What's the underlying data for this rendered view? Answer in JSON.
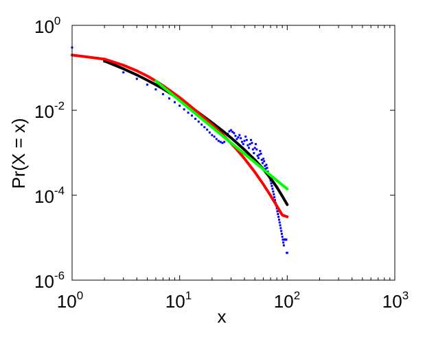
{
  "chart_data": {
    "type": "scatter",
    "title": "",
    "xlabel": "x",
    "ylabel": "Pr(X = x)",
    "x_scale": "log",
    "y_scale": "log",
    "xlim": [
      1,
      1000
    ],
    "ylim": [
      1e-06,
      1
    ],
    "x_ticks": [
      {
        "base": "10",
        "exp": "0",
        "value": 1
      },
      {
        "base": "10",
        "exp": "1",
        "value": 10
      },
      {
        "base": "10",
        "exp": "2",
        "value": 100
      },
      {
        "base": "10",
        "exp": "3",
        "value": 1000
      }
    ],
    "y_ticks": [
      {
        "base": "10",
        "exp": "0",
        "value": 1
      },
      {
        "base": "10",
        "exp": "-2",
        "value": 0.01
      },
      {
        "base": "10",
        "exp": "-4",
        "value": 0.0001
      },
      {
        "base": "10",
        "exp": "-6",
        "value": 1e-06
      }
    ],
    "grid": false,
    "legend": "none",
    "series": [
      {
        "style": "points",
        "color": "#0000ff",
        "points": [
          [
            1,
            0.3
          ],
          [
            2,
            0.14
          ],
          [
            3,
            0.078
          ],
          [
            4,
            0.055
          ],
          [
            5,
            0.04
          ],
          [
            6,
            0.031
          ],
          [
            7,
            0.024
          ],
          [
            8,
            0.019
          ],
          [
            9,
            0.0155
          ],
          [
            10,
            0.0128
          ],
          [
            11,
            0.0105
          ],
          [
            12,
            0.0088
          ],
          [
            13,
            0.0075
          ],
          [
            14,
            0.0063
          ],
          [
            15,
            0.0054
          ],
          [
            16,
            0.0046
          ],
          [
            17,
            0.004
          ],
          [
            18,
            0.0035
          ],
          [
            19,
            0.003
          ],
          [
            20,
            0.0026
          ],
          [
            21,
            0.0024
          ],
          [
            22,
            0.0021
          ],
          [
            23,
            0.0019
          ],
          [
            24,
            0.0018
          ],
          [
            25,
            0.0017
          ],
          [
            26,
            0.0018
          ],
          [
            27,
            0.0022
          ],
          [
            28,
            0.0028
          ],
          [
            29,
            0.0032
          ],
          [
            30,
            0.0034
          ],
          [
            31,
            0.0031
          ],
          [
            32,
            0.0029
          ],
          [
            33,
            0.0025
          ],
          [
            34,
            0.0021
          ],
          [
            35,
            0.0023
          ],
          [
            36,
            0.0026
          ],
          [
            37,
            0.0022
          ],
          [
            38,
            0.0018
          ],
          [
            39,
            0.0016
          ],
          [
            40,
            0.0019
          ],
          [
            41,
            0.0024
          ],
          [
            42,
            0.002
          ],
          [
            43,
            0.0015
          ],
          [
            44,
            0.0013
          ],
          [
            45,
            0.0016
          ],
          [
            46,
            0.002
          ],
          [
            47,
            0.0017
          ],
          [
            48,
            0.0012
          ],
          [
            49,
            0.00098
          ],
          [
            50,
            0.0013
          ],
          [
            51,
            0.0016
          ],
          [
            52,
            0.0012
          ],
          [
            53,
            0.00085
          ],
          [
            54,
            0.00075
          ],
          [
            55,
            0.0009
          ],
          [
            56,
            0.0011
          ],
          [
            57,
            0.00095
          ],
          [
            58,
            0.00068
          ],
          [
            59,
            0.00057
          ],
          [
            60,
            0.00072
          ],
          [
            61,
            0.00063
          ],
          [
            62,
            0.00049
          ],
          [
            63,
            0.00042
          ],
          [
            64,
            0.00052
          ],
          [
            65,
            0.00044
          ],
          [
            66,
            0.00036
          ],
          [
            67,
            0.00031
          ],
          [
            68,
            0.00028
          ],
          [
            69,
            0.00025
          ],
          [
            70,
            0.00022
          ],
          [
            71,
            0.00019
          ],
          [
            72,
            0.000165
          ],
          [
            73,
            0.000142
          ],
          [
            74,
            0.000122
          ],
          [
            75,
            0.000105
          ],
          [
            76,
            9e-05
          ],
          [
            77,
            7.7e-05
          ],
          [
            78,
            6.6e-05
          ],
          [
            79,
            5.7e-05
          ],
          [
            80,
            4.9e-05
          ],
          [
            81,
            4.2e-05
          ],
          [
            82,
            3.6e-05
          ],
          [
            83,
            3.1e-05
          ],
          [
            84,
            2.65e-05
          ],
          [
            85,
            2.28e-05
          ],
          [
            86,
            1.96e-05
          ],
          [
            87,
            1.68e-05
          ],
          [
            88,
            1.44e-05
          ],
          [
            89,
            1.23e-05
          ],
          [
            90,
            1.05e-05
          ],
          [
            91,
            9e-06
          ],
          [
            92,
            7.7e-06
          ],
          [
            93,
            6.6e-06
          ],
          [
            94,
            9e-06
          ],
          [
            95,
            9e-06
          ],
          [
            96,
            9e-06
          ],
          [
            97,
            9e-06
          ],
          [
            98,
            9e-06
          ],
          [
            99,
            4.4e-06
          ],
          [
            100,
            4.4e-06
          ]
        ]
      },
      {
        "style": "line",
        "color": "#000000",
        "points": [
          [
            2,
            0.145
          ],
          [
            3,
            0.095
          ],
          [
            4,
            0.068
          ],
          [
            5,
            0.051
          ],
          [
            6,
            0.04
          ],
          [
            7,
            0.032
          ],
          [
            8,
            0.026
          ],
          [
            10,
            0.018
          ],
          [
            12,
            0.0132
          ],
          [
            15,
            0.0088
          ],
          [
            20,
            0.0051
          ],
          [
            25,
            0.0033
          ],
          [
            30,
            0.00225
          ],
          [
            35,
            0.0016
          ],
          [
            40,
            0.00118
          ],
          [
            50,
            0.00068
          ],
          [
            60,
            0.00041
          ],
          [
            70,
            0.00025
          ],
          [
            80,
            0.000155
          ],
          [
            90,
            9.5e-05
          ],
          [
            100,
            6e-05
          ]
        ]
      },
      {
        "style": "line",
        "color": "#ff0000",
        "points": [
          [
            1,
            0.2
          ],
          [
            2,
            0.16
          ],
          [
            3,
            0.115
          ],
          [
            4,
            0.085
          ],
          [
            5,
            0.064
          ],
          [
            6,
            0.049
          ],
          [
            7,
            0.038
          ],
          [
            8,
            0.03
          ],
          [
            10,
            0.02
          ],
          [
            12,
            0.0138
          ],
          [
            15,
            0.0086
          ],
          [
            20,
            0.0046
          ],
          [
            25,
            0.0027
          ],
          [
            30,
            0.00168
          ],
          [
            35,
            0.00109
          ],
          [
            40,
            0.00073
          ],
          [
            50,
            0.00035
          ],
          [
            60,
            0.00018
          ],
          [
            70,
            9.8e-05
          ],
          [
            80,
            5.6e-05
          ],
          [
            90,
            3.4e-05
          ],
          [
            100,
            3.1e-05
          ]
        ]
      },
      {
        "style": "line",
        "color": "#00ff00",
        "points": [
          [
            6,
            0.049
          ],
          [
            100,
            0.00014
          ]
        ]
      }
    ]
  }
}
